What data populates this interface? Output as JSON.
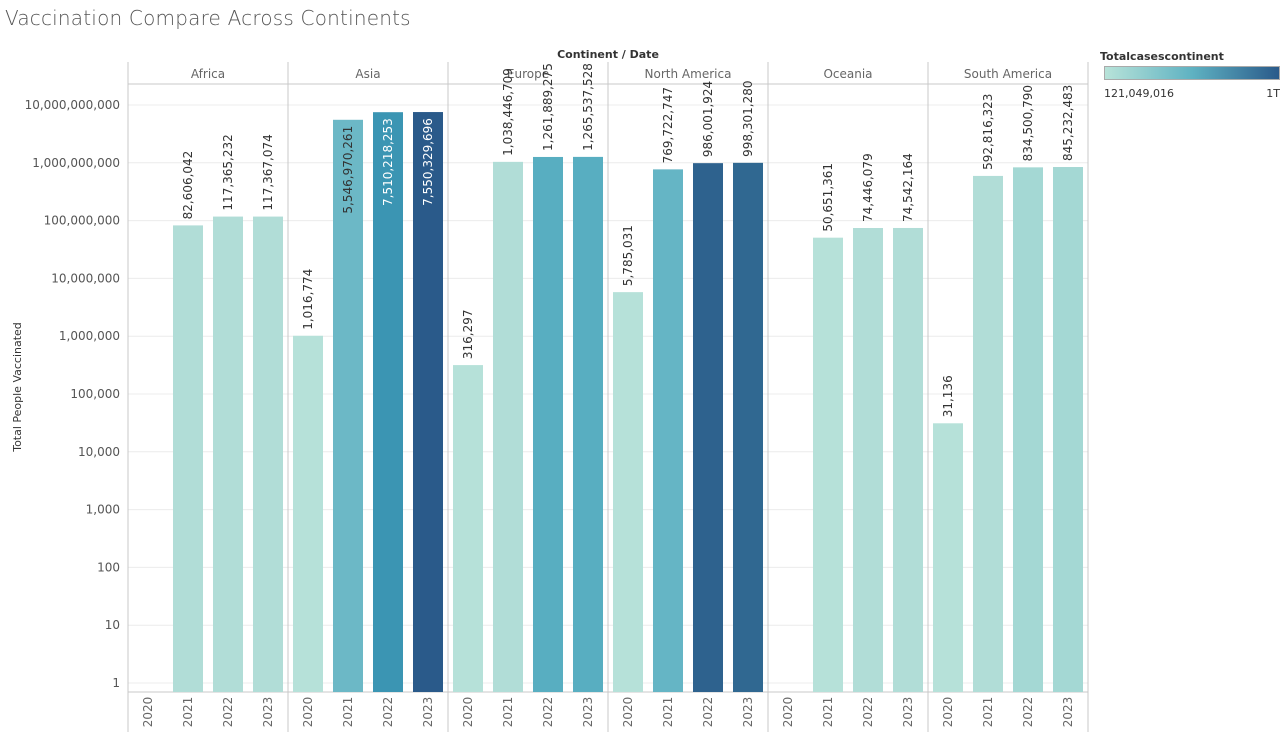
{
  "page": {
    "title": "Vaccination Compare Across Continents"
  },
  "legend": {
    "title": "Totalcasescontinent",
    "min_label": "121,049,016",
    "max_label": "1T",
    "color_low": "#b8e3d9",
    "color_high": "#2a5a8a"
  },
  "chart_data": {
    "type": "bar",
    "title": "Vaccination Compare Across Continents",
    "header_label": "Continent / Date",
    "ylabel": "Total People Vaccinated",
    "yscale": "log",
    "ylim": [
      1,
      20000000000
    ],
    "y_ticks": [
      {
        "value": 1,
        "label": "1"
      },
      {
        "value": 10,
        "label": "10"
      },
      {
        "value": 100,
        "label": "100"
      },
      {
        "value": 1000,
        "label": "1,000"
      },
      {
        "value": 10000,
        "label": "10,000"
      },
      {
        "value": 100000,
        "label": "100,000"
      },
      {
        "value": 1000000,
        "label": "1,000,000"
      },
      {
        "value": 10000000,
        "label": "10,000,000"
      },
      {
        "value": 100000000,
        "label": "100,000,000"
      },
      {
        "value": 1000000000,
        "label": "1,000,000,000"
      },
      {
        "value": 10000000000,
        "label": "10,000,000,000"
      }
    ],
    "years": [
      "2020",
      "2021",
      "2022",
      "2023"
    ],
    "grid": true,
    "legend_position": "top-right",
    "panels": [
      {
        "continent": "Africa",
        "bars": [
          {
            "year": "2020",
            "value": null,
            "label": "",
            "color": ""
          },
          {
            "year": "2021",
            "value": 82606042,
            "label": "82,606,042",
            "color": "#b1ddd7"
          },
          {
            "year": "2022",
            "value": 117365232,
            "label": "117,365,232",
            "color": "#b1ddd7"
          },
          {
            "year": "2023",
            "value": 117367074,
            "label": "117,367,074",
            "color": "#b1ddd7"
          }
        ]
      },
      {
        "continent": "Asia",
        "bars": [
          {
            "year": "2020",
            "value": 1016774,
            "label": "1,016,774",
            "color": "#b6e1d9"
          },
          {
            "year": "2021",
            "value": 5546970261,
            "label": "5,546,970,261",
            "color": "#6cb8c6"
          },
          {
            "year": "2022",
            "value": 7510218253,
            "label": "7,510,218,253",
            "color": "#3b95b3"
          },
          {
            "year": "2023",
            "value": 7550329696,
            "label": "7,550,329,696",
            "color": "#2a5a8a"
          }
        ]
      },
      {
        "continent": "Europe",
        "bars": [
          {
            "year": "2020",
            "value": 316297,
            "label": "316,297",
            "color": "#b6e1d9"
          },
          {
            "year": "2021",
            "value": 1038446709,
            "label": "1,038,446,709",
            "color": "#b1ddd7"
          },
          {
            "year": "2022",
            "value": 1261889275,
            "label": "1,261,889,275",
            "color": "#58aec1"
          },
          {
            "year": "2023",
            "value": 1265537528,
            "label": "1,265,537,528",
            "color": "#58aec1"
          }
        ]
      },
      {
        "continent": "North America",
        "bars": [
          {
            "year": "2020",
            "value": 5785031,
            "label": "5,785,031",
            "color": "#b6e1d9"
          },
          {
            "year": "2021",
            "value": 769722747,
            "label": "769,722,747",
            "color": "#65b5c5"
          },
          {
            "year": "2022",
            "value": 986001924,
            "label": "986,001,924",
            "color": "#2e628e"
          },
          {
            "year": "2023",
            "value": 998301280,
            "label": "998,301,280",
            "color": "#306891"
          }
        ]
      },
      {
        "continent": "Oceania",
        "bars": [
          {
            "year": "2020",
            "value": null,
            "label": "",
            "color": ""
          },
          {
            "year": "2021",
            "value": 50651361,
            "label": "50,651,361",
            "color": "#b6e1d9"
          },
          {
            "year": "2022",
            "value": 74446079,
            "label": "74,446,079",
            "color": "#b1ddd7"
          },
          {
            "year": "2023",
            "value": 74542164,
            "label": "74,542,164",
            "color": "#b1ddd7"
          }
        ]
      },
      {
        "continent": "South America",
        "bars": [
          {
            "year": "2020",
            "value": 31136,
            "label": "31,136",
            "color": "#b6e1d9"
          },
          {
            "year": "2021",
            "value": 592816323,
            "label": "592,816,323",
            "color": "#b1ddd7"
          },
          {
            "year": "2022",
            "value": 834500790,
            "label": "834,500,790",
            "color": "#a4d8d4"
          },
          {
            "year": "2023",
            "value": 845232483,
            "label": "845,232,483",
            "color": "#a4d8d4"
          }
        ]
      }
    ]
  }
}
